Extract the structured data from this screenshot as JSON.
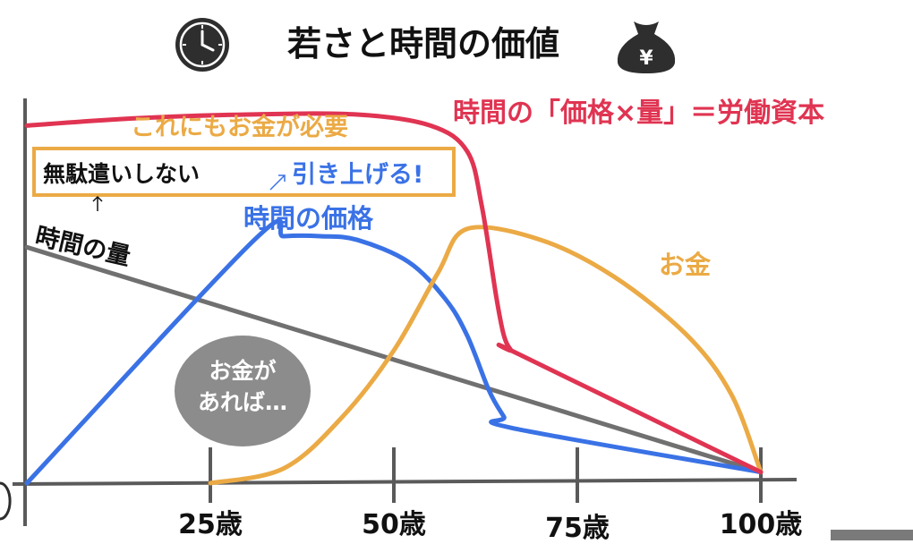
{
  "title": "若さと時間の価値",
  "icons": {
    "left": "clock-icon",
    "right": "money-bag-icon",
    "money_symbol": "¥"
  },
  "colors": {
    "labor_capital": "#e03452",
    "time_price": "#3a72e6",
    "money": "#ebaa45",
    "time_amount": "#707070",
    "axis": "#5a5a5a",
    "bubble": "#8c8c8c",
    "box_border": "#ebaa45"
  },
  "annotations": {
    "formula": "時間の「価格×量」＝労働資本",
    "money_needed": "これにもお金が必要",
    "no_waste": "無駄遣いしない",
    "raise": "引き上げる!",
    "time_price": "時間の価格",
    "time_amount": "時間の量",
    "money": "お金",
    "bubble_line1": "お金が",
    "bubble_line2": "あれば…"
  },
  "chart_data": {
    "type": "line",
    "title": "若さと時間の価値",
    "x_ticks": [
      "25歳",
      "50歳",
      "75歳",
      "100歳"
    ],
    "x_tick_values": [
      25,
      50,
      75,
      100
    ],
    "xlim": [
      2,
      106
    ],
    "ylim": [
      0,
      100
    ],
    "grid": false,
    "series": [
      {
        "name": "時間の「価格×量」＝労働資本",
        "color_key": "labor_capital",
        "x": [
          0,
          15,
          30,
          45,
          55,
          60,
          62,
          64,
          65,
          66,
          67,
          100
        ],
        "y": [
          97,
          99,
          100,
          100,
          97,
          90,
          75,
          50,
          40,
          36,
          35,
          3
        ]
      },
      {
        "name": "時間の価格",
        "color_key": "time_price",
        "x": [
          0,
          31,
          35,
          40,
          45,
          52,
          57,
          60,
          63,
          65,
          66,
          100
        ],
        "y": [
          0,
          66,
          67,
          67,
          66,
          60,
          50,
          40,
          25,
          18,
          15,
          3
        ]
      },
      {
        "name": "お金",
        "color_key": "money",
        "x": [
          25,
          35,
          43,
          50,
          56,
          60,
          70,
          80,
          90,
          96,
          100
        ],
        "y": [
          0,
          4,
          18,
          36,
          57,
          69,
          66,
          56,
          40,
          24,
          3
        ]
      },
      {
        "name": "時間の量",
        "color_key": "time_amount",
        "x": [
          0,
          100
        ],
        "y": [
          64,
          3
        ]
      }
    ]
  }
}
